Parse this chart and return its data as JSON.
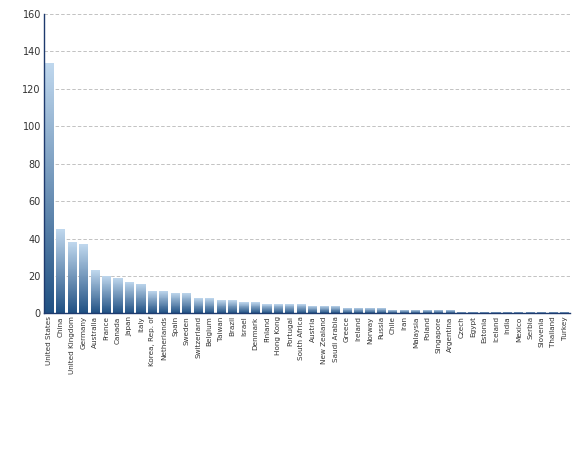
{
  "categories": [
    "United States",
    "China",
    "United Kingdom",
    "Germany",
    "Australia",
    "France",
    "Canada",
    "Japan",
    "Italy",
    "Korea, Rep. of",
    "Netherlands",
    "Spain",
    "Sweden",
    "Switzerland",
    "Belgium",
    "Taiwan",
    "Brazil",
    "Israel",
    "Denmark",
    "Finland",
    "Hong Kong",
    "Portugal",
    "South Africa",
    "Austria",
    "New Zealand",
    "Saudi Arabia",
    "Greece",
    "Ireland",
    "Norway",
    "Russia",
    "Chile",
    "Iran",
    "Malaysia",
    "Poland",
    "Singapore",
    "Argentina",
    "Czech",
    "Egypt",
    "Estonia",
    "Iceland",
    "India",
    "Mexico",
    "Serbia",
    "Slovenia",
    "Thailand",
    "Turkey"
  ],
  "values": [
    134,
    45,
    38,
    37,
    23,
    20,
    19,
    17,
    16,
    12,
    12,
    11,
    11,
    8,
    8,
    7,
    7,
    6,
    6,
    5,
    5,
    5,
    5,
    4,
    4,
    4,
    3,
    3,
    3,
    3,
    2,
    2,
    2,
    2,
    2,
    2,
    1,
    1,
    1,
    1,
    1,
    1,
    1,
    1,
    1,
    1
  ],
  "bar_color_light": "#c0d8ee",
  "bar_color_dark": "#1e4f82",
  "background_color": "#ffffff",
  "grid_color": "#aaaaaa",
  "ylim": [
    0,
    160
  ],
  "yticks": [
    0,
    20,
    40,
    60,
    80,
    100,
    120,
    140,
    160
  ],
  "axis_color": "#1e3a6e"
}
